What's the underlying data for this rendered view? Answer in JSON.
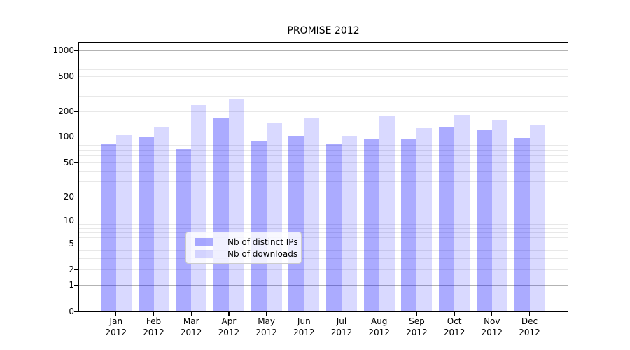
{
  "title": "PROMISE 2012",
  "legend": {
    "items": [
      {
        "label": "Nb of distinct IPs"
      },
      {
        "label": "Nb of downloads"
      }
    ]
  },
  "colors": {
    "bar_distinct_ips": "rgba(0,0,255,0.33)",
    "bar_downloads": "rgba(0,0,255,0.15)",
    "grid_major": "#b3b3b3",
    "grid_minor": "#e8e8e8",
    "axis": "#000000"
  },
  "chart_data": {
    "type": "bar",
    "title": "PROMISE 2012",
    "yscale": "symlog",
    "grid": true,
    "legend_position": "lower center inside plot",
    "categories": [
      "Jan 2012",
      "Feb 2012",
      "Mar 2012",
      "Apr 2012",
      "May 2012",
      "Jun 2012",
      "Jul 2012",
      "Aug 2012",
      "Sep 2012",
      "Oct 2012",
      "Nov 2012",
      "Dec 2012"
    ],
    "x_tick_months": [
      "Jan",
      "Feb",
      "Mar",
      "Apr",
      "May",
      "Jun",
      "Jul",
      "Aug",
      "Sep",
      "Oct",
      "Nov",
      "Dec"
    ],
    "x_tick_year": "2012",
    "y_ticks": [
      0,
      1,
      2,
      5,
      10,
      20,
      50,
      100,
      200,
      500,
      1000
    ],
    "ylim": [
      0,
      1230
    ],
    "xlabel": "",
    "ylabel": "",
    "series": [
      {
        "name": "Nb of distinct IPs",
        "color": "rgba(0,0,255,0.33)",
        "values": [
          82,
          100,
          72,
          164,
          89,
          102,
          83,
          94,
          92,
          130,
          120,
          96
        ]
      },
      {
        "name": "Nb of downloads",
        "color": "rgba(0,0,255,0.15)",
        "values": [
          103,
          132,
          235,
          270,
          145,
          165,
          102,
          174,
          125,
          182,
          158,
          138
        ]
      }
    ]
  }
}
